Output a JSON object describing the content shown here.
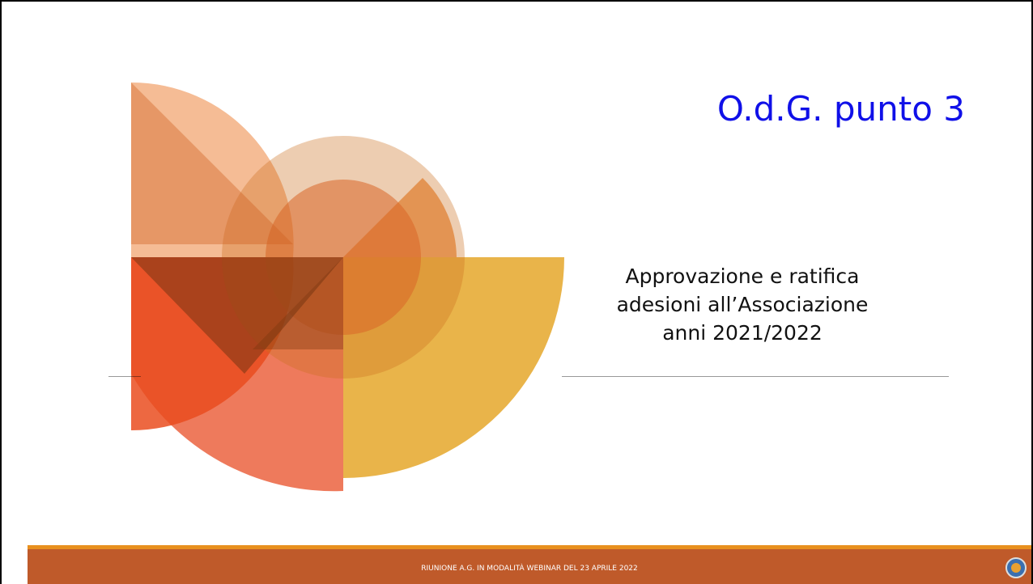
{
  "slide": {
    "title": "O.d.G. punto 3",
    "subtitle_lines": [
      "Approvazione e ratifica",
      "adesioni all’Associazione",
      "anni 2021/2022"
    ],
    "footer": "RIUNIONE A.G. IN MODALITÀ WEBINAR DEL 23 APRILE 2022"
  }
}
